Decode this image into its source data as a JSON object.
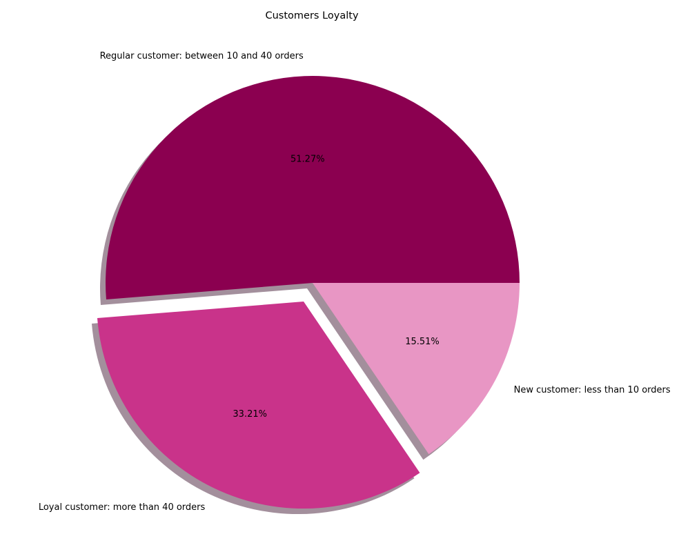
{
  "chart_data": {
    "type": "pie",
    "title": "Customers Loyalty",
    "slices": [
      {
        "label": "Regular customer: between 10 and 40 orders",
        "value": 51.27,
        "pct_label": "51.27%",
        "color": "#8b0050",
        "exploded": false
      },
      {
        "label": "Loyal customer: more than 40 orders",
        "value": 33.21,
        "pct_label": "33.21%",
        "color": "#c9338a",
        "exploded": true
      },
      {
        "label": "New customer: less than 10 orders",
        "value": 15.51,
        "pct_label": "15.51%",
        "color": "#e896c4",
        "exploded": false
      }
    ],
    "start_angle_deg": 0,
    "direction": "counterclockwise",
    "shadow": true,
    "legend": false
  }
}
